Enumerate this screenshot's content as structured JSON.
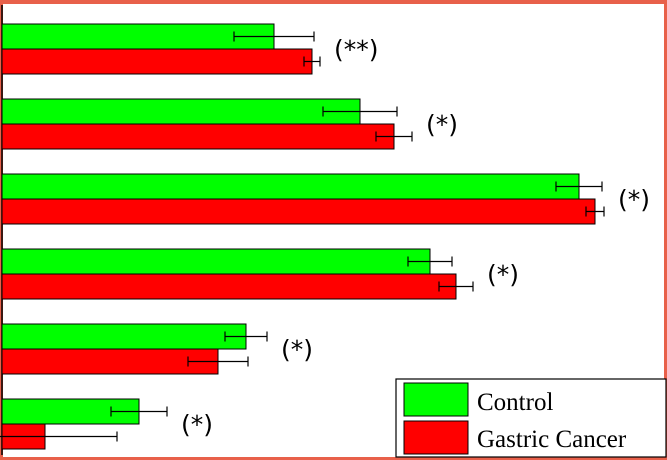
{
  "chart_data": {
    "type": "bar",
    "orientation": "horizontal",
    "categories": [
      "",
      "",
      "",
      "",
      "",
      ""
    ],
    "series": [
      {
        "name": "Control",
        "color": "#00ff00",
        "values": [
          272,
          358,
          577,
          428,
          244,
          137
        ],
        "errors": [
          40,
          37,
          23,
          22,
          21,
          28
        ]
      },
      {
        "name": "Gastric Cancer",
        "color": "#ff0000",
        "values": [
          310,
          392,
          593,
          454,
          216,
          43
        ],
        "errors": [
          8,
          18,
          9,
          17,
          30,
          72
        ]
      }
    ],
    "significance": [
      "(**)",
      "(*)",
      "(*)",
      "(*)",
      "(*)",
      "(*)"
    ],
    "xlim": [
      0,
      660
    ],
    "grid": false,
    "legend_position": "bottom-right"
  },
  "legend": {
    "control_label": "Control",
    "cancer_label": "Gastric Cancer"
  }
}
